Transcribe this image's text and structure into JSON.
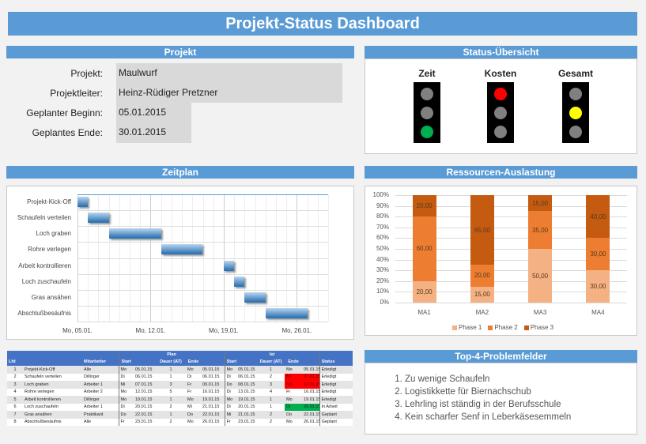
{
  "title": "Projekt-Status Dashboard",
  "projekt": {
    "header": "Projekt",
    "rows": [
      {
        "label": "Projekt:",
        "value": "Maulwurf"
      },
      {
        "label": "Projektleiter:",
        "value": "Heinz-Rüdiger Pretzner"
      },
      {
        "label": "Geplanter Beginn:",
        "value": "05.01.2015"
      },
      {
        "label": "Geplantes Ende:",
        "value": "30.01.2015"
      }
    ]
  },
  "status": {
    "header": "Status-Übersicht",
    "lights": [
      {
        "label": "Zeit",
        "active": "green"
      },
      {
        "label": "Kosten",
        "active": "red"
      },
      {
        "label": "Gesamt",
        "active": "yellow"
      }
    ],
    "colors": {
      "red": "#ff0000",
      "yellow": "#ffff00",
      "green": "#00b050",
      "off": "#808080"
    }
  },
  "zeitplan": {
    "header": "Zeitplan",
    "tasks": [
      {
        "name": "Projekt-Kick-Off",
        "start": "2015-01-05",
        "end": "2015-01-06"
      },
      {
        "name": "Schaufeln verteilen",
        "start": "2015-01-06",
        "end": "2015-01-08"
      },
      {
        "name": "Loch graben",
        "start": "2015-01-08",
        "end": "2015-01-13"
      },
      {
        "name": "Rohre verlegen",
        "start": "2015-01-13",
        "end": "2015-01-17"
      },
      {
        "name": "Arbeit kontrollieren",
        "start": "2015-01-19",
        "end": "2015-01-20"
      },
      {
        "name": "Loch zuschaufeln",
        "start": "2015-01-20",
        "end": "2015-01-21"
      },
      {
        "name": "Gras ansähen",
        "start": "2015-01-21",
        "end": "2015-01-23"
      },
      {
        "name": "Abschlußbesäufnis",
        "start": "2015-01-23",
        "end": "2015-01-27"
      }
    ],
    "xticks": [
      "Mo, 05.01.",
      "Mo, 12.01.",
      "Mo, 19.01.",
      "Mo, 26.01."
    ],
    "xrange": [
      "2015-01-05",
      "2015-01-29"
    ]
  },
  "chart_data": {
    "type": "bar",
    "stacked": true,
    "title": "Ressourcen-Auslastung",
    "categories": [
      "MA1",
      "MA2",
      "MA3",
      "MA4"
    ],
    "series": [
      {
        "name": "Phase 1",
        "values": [
          20,
          15,
          50,
          30
        ],
        "color": "#f4b183"
      },
      {
        "name": "Phase 2",
        "values": [
          60,
          20,
          35,
          30
        ],
        "color": "#ed7d31"
      },
      {
        "name": "Phase 3",
        "values": [
          20,
          65,
          15,
          40
        ],
        "color": "#c55a11"
      }
    ],
    "yticks": [
      "0%",
      "10%",
      "20%",
      "30%",
      "40%",
      "50%",
      "60%",
      "70%",
      "80%",
      "90%",
      "100%"
    ],
    "ylim": [
      0,
      100
    ],
    "legend": "bottom",
    "grid": true
  },
  "tabelle": {
    "group_plan": "Plan",
    "group_ist": "Ist",
    "headers": [
      "Lfd",
      "",
      "Mitarbeiter",
      "Start",
      "",
      "Dauer (AT)",
      "Ende",
      "",
      "Start",
      "",
      "Dauer (AT)",
      "Ende",
      "",
      "Status"
    ],
    "rows": [
      [
        "1",
        "Projekt-Kick-Off",
        "Alle",
        "Mo",
        "05.01.15",
        "1",
        "Mo",
        "05.01.15",
        "Mo",
        "05.01.15",
        "1",
        "Mo",
        "05.01.15",
        "Erledigt"
      ],
      [
        "2",
        "Schaufeln verteilen",
        "Dillinger",
        "Di",
        "06.01.15",
        "1",
        "Di",
        "06.01.15",
        "Di",
        "06.01.15",
        "2",
        "Mi",
        "07.01.15",
        "Erledigt"
      ],
      [
        "3",
        "Loch graben",
        "Arbeiter 1",
        "Mi",
        "07.01.15",
        "3",
        "Fr",
        "09.01.15",
        "Do",
        "08.01.15",
        "3",
        "Mo",
        "12.01.15",
        "Erledigt"
      ],
      [
        "4",
        "Rohre verlegen",
        "Arbeiter 2",
        "Mo",
        "12.01.15",
        "5",
        "Fr",
        "16.01.15",
        "Di",
        "13.01.15",
        "4",
        "Fr",
        "16.01.15",
        "Erledigt"
      ],
      [
        "5",
        "Arbeit kontrollieren",
        "Dillinger",
        "Mo",
        "19.01.15",
        "1",
        "Mo",
        "19.01.15",
        "Mo",
        "19.01.15",
        "1",
        "Mo",
        "19.01.15",
        "Erledigt"
      ],
      [
        "6",
        "Loch zuschaufeln",
        "Arbeiter 1",
        "Di",
        "20.01.15",
        "2",
        "Mi",
        "21.01.15",
        "Di",
        "20.01.15",
        "1",
        "Di",
        "20.01.15",
        "In Arbeit"
      ],
      [
        "7",
        "Gras ansähen",
        "Praktikant",
        "Do",
        "22.01.15",
        "1",
        "Do",
        "22.01.15",
        "Mi",
        "21.01.15",
        "2",
        "Do",
        "22.01.15",
        "Geplant"
      ],
      [
        "8",
        "Abschlußbesäufnis",
        "Alle",
        "Fr",
        "23.01.15",
        "2",
        "Mo",
        "26.01.15",
        "Fr",
        "23.01.15",
        "2",
        "Mo",
        "26.01.15",
        "Geplant"
      ]
    ],
    "highlight": {
      "1": "red",
      "2": "red",
      "5": "green"
    }
  },
  "probleme": {
    "header": "Top-4-Problemfelder",
    "items": [
      "Zu wenige Schaufeln",
      "Logistikkette für Biernachschub",
      "Lehrling ist ständig in der Berufsschule",
      "Kein scharfer Senf in Leberkäsesemmeln"
    ]
  }
}
